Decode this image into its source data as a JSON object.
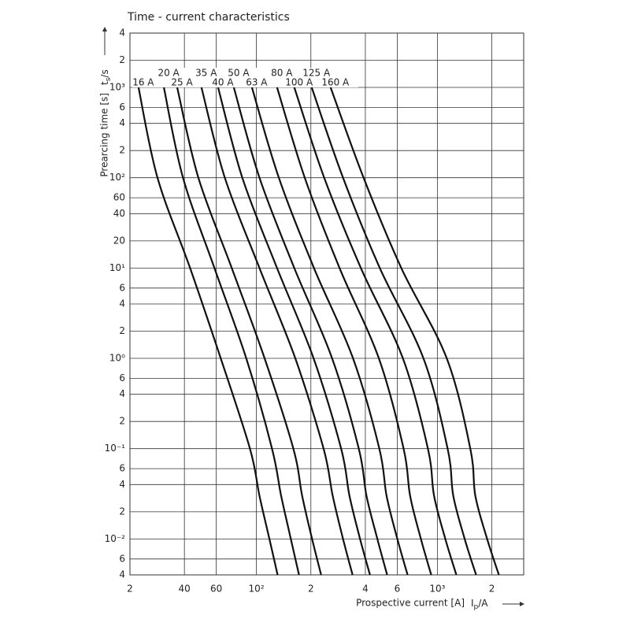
{
  "chart_data": {
    "type": "line",
    "title": "Time - current characteristics",
    "ylabel": "Prearcing time [s]",
    "y_unit": {
      "symbol": "t",
      "subscript": "s",
      "unit": "/s"
    },
    "xlabel": "Prospective current [A]",
    "x_unit": {
      "symbol": "I",
      "subscript": "p",
      "unit": "/A"
    },
    "xscale": "log",
    "yscale": "log",
    "grid": true,
    "color": "#111111",
    "xlim": [
      20,
      3000
    ],
    "ylim": [
      0.004,
      4000
    ],
    "xticks": [
      {
        "value": 20,
        "label": "2"
      },
      40,
      60,
      {
        "value": 100,
        "label": "10²"
      },
      {
        "value": 200,
        "label": "2"
      },
      {
        "value": 400,
        "label": "4"
      },
      {
        "value": 600,
        "label": "6"
      },
      {
        "value": 1000,
        "label": "10³"
      },
      {
        "value": 2000,
        "label": "2"
      }
    ],
    "yticks": [
      {
        "value": 4000,
        "label": "4"
      },
      {
        "value": 2000,
        "label": "2"
      },
      {
        "value": 1000,
        "label": "10³"
      },
      {
        "value": 600,
        "label": "6"
      },
      {
        "value": 400,
        "label": "4"
      },
      {
        "value": 200,
        "label": "2"
      },
      {
        "value": 100,
        "label": "10²"
      },
      60,
      40,
      20,
      {
        "value": 10,
        "label": "10¹"
      },
      6,
      4,
      2,
      {
        "value": 1,
        "label": "10⁰"
      },
      {
        "value": 0.6,
        "label": "6"
      },
      {
        "value": 0.4,
        "label": "4"
      },
      {
        "value": 0.2,
        "label": "2"
      },
      {
        "value": 0.1,
        "label": "10⁻¹"
      },
      {
        "value": 0.06,
        "label": "6"
      },
      {
        "value": 0.04,
        "label": "4"
      },
      {
        "value": 0.02,
        "label": "2"
      },
      {
        "value": 0.01,
        "label": "10⁻²"
      },
      {
        "value": 0.006,
        "label": "6"
      },
      {
        "value": 0.004,
        "label": "4"
      }
    ],
    "y": [
      1000,
      100,
      10,
      1,
      0.1,
      0.03,
      0.01,
      0.004
    ],
    "series": [
      {
        "name": "16 A",
        "values": [
          22.3,
          28.4,
          43.0,
          63.5,
          92.1,
          104,
          118,
          131
        ]
      },
      {
        "name": "20 A",
        "values": [
          30.8,
          39.3,
          58.6,
          87.9,
          122,
          137,
          155,
          172
        ]
      },
      {
        "name": "25 A",
        "values": [
          36.5,
          47.8,
          73.1,
          111,
          160,
          179,
          203,
          228
        ]
      },
      {
        "name": "35 A",
        "values": [
          49.7,
          66.9,
          104,
          164,
          235,
          264,
          301,
          340
        ]
      },
      {
        "name": "40 A",
        "values": [
          61.4,
          83.6,
          130,
          207,
          294,
          327,
          374,
          424
        ]
      },
      {
        "name": "50 A",
        "values": [
          75.0,
          104,
          162,
          262,
          368,
          406,
          466,
          528
        ]
      },
      {
        "name": "63 A",
        "values": [
          94.4,
          133,
          208,
          342,
          478,
          524,
          601,
          685
        ]
      },
      {
        "name": "80 A",
        "values": [
          130,
          185,
          288,
          475,
          651,
          707,
          811,
          925
        ]
      },
      {
        "name": "100 A",
        "values": [
          162,
          237,
          378,
          645,
          887,
          959,
          1107,
          1274
        ]
      },
      {
        "name": "125 A",
        "values": [
          202,
          301,
          481,
          838,
          1140,
          1225,
          1416,
          1637
        ]
      },
      {
        "name": "160 A",
        "values": [
          257,
          391,
          632,
          1127,
          1521,
          1622,
          1884,
          2188
        ]
      }
    ]
  }
}
